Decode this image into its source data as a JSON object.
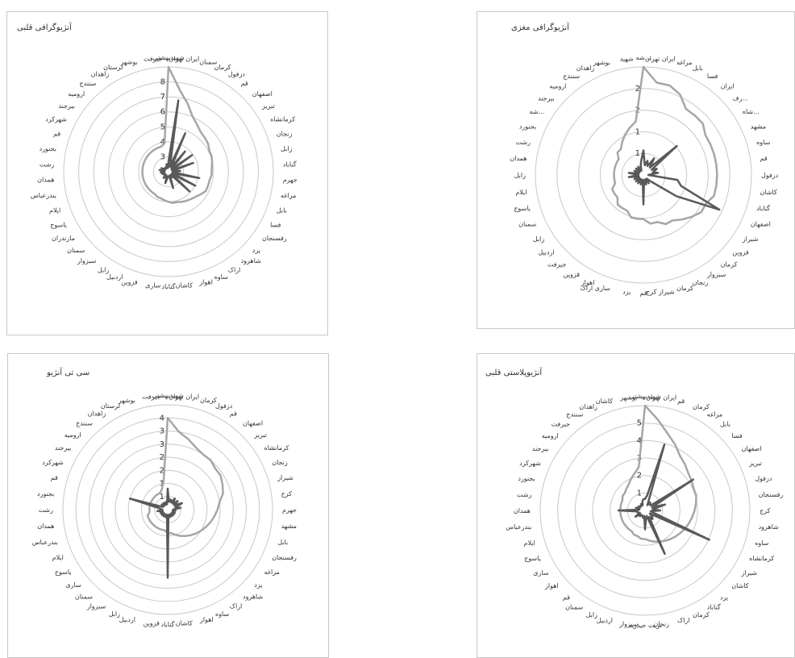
{
  "colors": {
    "series_light": "#a6a6a6",
    "series_dark": "#595959",
    "grid": "#c8c8c8",
    "text": "#333333"
  },
  "chart_data": [
    {
      "type": "radar",
      "title": "آنژیوگرافی قلبی",
      "r_ticks": [
        "3",
        "4",
        "5",
        "6",
        "7",
        "8"
      ],
      "r_max": 8,
      "categories": [
        "شهیدبهشتی",
        "ایران تهران",
        "سمنان",
        "کرمان",
        "دزفول",
        "قم",
        "اصفهان",
        "تبریز",
        "کرمانشاه",
        "زنجان",
        "زابل",
        "گناباد",
        "جهرم",
        "مراغه",
        "بابل",
        "فسا",
        "رفسنجان",
        "یزد",
        "شاهرود",
        "اراک",
        "ساوه",
        "اهواز",
        "کاشان",
        "گناباد",
        "ساری",
        "قزوین",
        "اردبیل",
        "زابل",
        "سبزوار",
        "سمنان",
        "مازندران",
        "یاسوج",
        "ایلام",
        "بندرعباس",
        "همدان",
        "رشت",
        "بجنورد",
        "قم",
        "شهرکرد",
        "بیرجند",
        "ارومیه",
        "سنندج",
        "زاهدان",
        "لرستان",
        "بوشهر",
        "جیرفت"
      ],
      "series": [
        {
          "values": [
            8.0,
            6.3,
            5.4,
            4.6,
            4.2,
            3.9,
            3.8,
            3.7,
            3.5,
            3.5,
            3.4,
            3.3,
            3.3,
            3.2,
            3.2,
            3.2,
            3.0,
            2.8,
            2.7,
            2.6,
            2.5,
            2.4,
            2.4,
            2.3,
            2.2,
            2.1,
            2.1,
            2.0,
            2.0,
            2.0,
            2.0,
            2.0,
            2.0,
            2.0,
            2.0,
            2.0,
            2.0,
            2.0,
            2.0,
            2.0,
            2.0,
            2.0,
            2.0,
            2.0,
            2.0,
            2.2
          ]
        },
        {
          "values": [
            0.8,
            5.5,
            0.4,
            3.2,
            0.4,
            2.0,
            0.3,
            2.2,
            0.3,
            2.0,
            0.3,
            0.9,
            0.3,
            2.4,
            0.3,
            2.3,
            0.3,
            2.2,
            0.3,
            0.5,
            0.3,
            1.3,
            0.3,
            0.4,
            0.4,
            0.9,
            0.4,
            0.3,
            0.6,
            0.3,
            0.4,
            0.4,
            0.5,
            0.3,
            0.6,
            0.3,
            0.7,
            0.3,
            0.6,
            0.3,
            0.4,
            0.3,
            0.4,
            0.3,
            0.6,
            0.3
          ]
        }
      ]
    },
    {
      "type": "radar",
      "title": "آنژیوگرافی مغزی",
      "r_ticks": [
        "1",
        "1",
        "2",
        "2"
      ],
      "r_max": 2.2,
      "categories": [
        "شه...",
        "ایران تهران",
        "مراغه",
        "بابل",
        "فسا",
        "ایران",
        "رف...",
        "شاه...",
        "مشهد",
        "ساوه",
        "قم",
        "دزفول",
        "کاشان",
        "گناباد",
        "اصفهان",
        "شیراز",
        "قزوین",
        "کرمان",
        "سبزوار",
        "زنجان",
        "کرمان",
        "شیراز کرج",
        "قم",
        "یزد",
        "ساری اراک",
        "اهواز",
        "قزوین",
        "جیرفت",
        "اردبیل",
        "زابل",
        "سمنان",
        "یاسوج",
        "ایلام",
        "زابل",
        "همدان",
        "رشت",
        "بجنورد",
        "شه...",
        "بیرجند",
        "ارومیه",
        "سنندج",
        "زاهدان",
        "بوشهر",
        "شهید"
      ],
      "series": [
        {
          "values": [
            2.2,
            1.9,
            1.9,
            1.8,
            1.6,
            1.6,
            1.6,
            1.5,
            1.5,
            1.5,
            1.5,
            1.5,
            1.5,
            1.5,
            1.4,
            1.4,
            1.3,
            1.2,
            1.1,
            1.1,
            1.0,
            1.0,
            0.9,
            0.9,
            0.9,
            0.8,
            0.8,
            0.8,
            0.7,
            0.7,
            0.7,
            0.6,
            0.6,
            0.6,
            0.6,
            0.6,
            0.6,
            0.6,
            0.7,
            0.7,
            0.8,
            0.9,
            1.0,
            1.1
          ]
        },
        {
          "values": [
            0.5,
            0.2,
            0.3,
            0.2,
            0.4,
            0.2,
            0.9,
            0.2,
            0.3,
            0.2,
            0.3,
            0.1,
            0.7,
            0.8,
            1.7,
            0.8,
            0.2,
            0.1,
            0.2,
            0.1,
            0.2,
            0.1,
            0.6,
            0.1,
            0.2,
            0.1,
            0.2,
            0.1,
            0.2,
            0.1,
            0.2,
            0.1,
            0.3,
            0.1,
            0.3,
            0.1,
            0.2,
            0.1,
            0.2,
            0.1,
            0.2,
            0.1,
            0.2,
            0.3
          ]
        }
      ]
    },
    {
      "type": "radar",
      "title": "سی تی آنژیو",
      "r_ticks": [
        "1",
        "1",
        "2",
        "2",
        "3",
        "3",
        "4"
      ],
      "r_max": 4,
      "categories": [
        "شهیدبهشتی",
        "ایران تهران",
        "کرمان",
        "دزفول",
        "قم",
        "اصفهان",
        "تبریز",
        "کرمانشاه",
        "زنجان",
        "شیراز",
        "کرج",
        "جهرم",
        "مشهد",
        "بابل",
        "رفسنجان",
        "مراغه",
        "یزد",
        "شاهرود",
        "اراک",
        "ساوه",
        "اهواز",
        "کاشان",
        "گناباد",
        "قزوین",
        "اردبیل",
        "زابل",
        "سبزوار",
        "سمنان",
        "ساری",
        "یاسوج",
        "ایلام",
        "بندرعباس",
        "همدان",
        "رشت",
        "بجنورد",
        "قم",
        "شهرکرد",
        "بیرجند",
        "ارومیه",
        "سنندج",
        "زاهدان",
        "لرستان",
        "بوشهر",
        "جیرفت"
      ],
      "series": [
        {
          "values": [
            3.5,
            3.0,
            2.8,
            2.6,
            2.5,
            2.5,
            2.4,
            2.4,
            2.3,
            2.2,
            2.0,
            1.9,
            1.8,
            1.7,
            1.6,
            1.5,
            1.4,
            1.3,
            1.2,
            1.1,
            1.0,
            0.9,
            0.9,
            0.8,
            0.8,
            0.8,
            0.8,
            0.8,
            0.8,
            0.8,
            0.8,
            0.8,
            0.7,
            0.7,
            0.7,
            0.7,
            0.7,
            0.7,
            0.7,
            0.7,
            0.7,
            0.7,
            0.8,
            1.1
          ]
        },
        {
          "values": [
            0.8,
            0.3,
            0.4,
            0.3,
            0.5,
            0.3,
            0.5,
            0.3,
            0.6,
            0.3,
            0.5,
            0.2,
            0.3,
            0.2,
            0.3,
            0.2,
            0.3,
            0.2,
            0.3,
            0.2,
            0.3,
            0.2,
            2.6,
            0.2,
            0.3,
            0.2,
            0.3,
            0.2,
            0.3,
            0.2,
            0.3,
            0.2,
            0.4,
            0.2,
            0.3,
            1.5,
            0.3,
            0.2,
            0.3,
            0.2,
            0.3,
            0.2,
            0.3,
            0.2
          ]
        }
      ]
    },
    {
      "type": "radar",
      "title": "آنژیوپلاستی قلبی",
      "r_ticks": [
        "1",
        "2",
        "3",
        "4",
        "5"
      ],
      "r_max": 5.5,
      "categories": [
        "شهیدبهشتی",
        "ایران تهران",
        "قم",
        "کرمان",
        "مراغه",
        "بابل",
        "فسا",
        "اصفهان",
        "تبریز",
        "دزفول",
        "رفسنجان",
        "کرج",
        "شاهرود",
        "ساوه",
        "کرمانشاه",
        "شیراز",
        "کاشان",
        "یزد",
        "گناباد",
        "کرمان",
        "اراک",
        "زنجان",
        "تربت حیدریه",
        "سبزوار",
        "اردبیل",
        "زابل",
        "سمنان",
        "قم",
        "اهواز",
        "ساری",
        "یاسوج",
        "ایلام",
        "بندرعباس",
        "همدان",
        "رشت",
        "بجنورد",
        "شهرکرد",
        "بیرجند",
        "ارومیه",
        "جیرفت",
        "سنندج",
        "زاهدان",
        "کاشان",
        "بوشهر"
      ],
      "series": [
        {
          "values": [
            5.5,
            4.8,
            4.2,
            3.8,
            3.4,
            3.2,
            3.0,
            2.9,
            2.8,
            2.8,
            2.7,
            2.6,
            2.5,
            2.4,
            2.3,
            2.2,
            2.1,
            2.0,
            1.9,
            1.8,
            1.7,
            1.6,
            1.5,
            1.5,
            1.4,
            1.4,
            1.3,
            1.3,
            1.3,
            1.3,
            1.3,
            1.3,
            1.3,
            1.3,
            1.3,
            1.3,
            1.3,
            1.4,
            1.4,
            1.5,
            1.6,
            1.8,
            2.0,
            2.3
          ]
        },
        {
          "values": [
            0.6,
            0.8,
            3.6,
            0.3,
            0.5,
            0.4,
            0.4,
            3.0,
            0.4,
            1.1,
            0.4,
            0.8,
            0.3,
            0.5,
            3.7,
            0.3,
            0.5,
            0.6,
            0.4,
            2.5,
            0.3,
            0.4,
            1.0,
            0.3,
            0.4,
            0.3,
            0.3,
            0.4,
            0.3,
            0.6,
            0.3,
            0.4,
            0.4,
            1.4,
            0.3,
            0.5,
            0.3,
            0.4,
            0.3,
            0.3,
            0.4,
            0.3,
            0.5,
            0.6
          ]
        }
      ]
    }
  ]
}
